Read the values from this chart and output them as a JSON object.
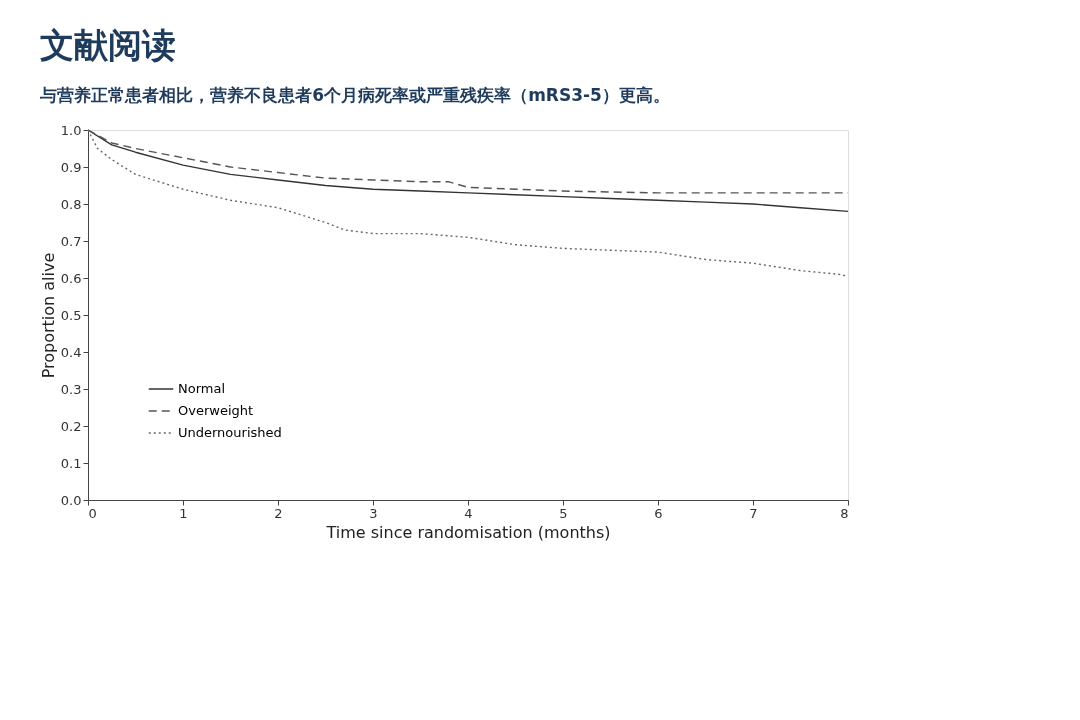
{
  "chart_data": {
    "type": "line",
    "title": "文献阅读",
    "subtitle": "与营养正常患者相比，营养不良患者6个月病死率或严重残疾率（mRS3-5）更高。",
    "xlabel": "Time since randomisation (months)",
    "ylabel": "Proportion alive",
    "xlim": [
      0,
      8
    ],
    "xticks": [
      0,
      1,
      2,
      3,
      4,
      5,
      6,
      7,
      8
    ],
    "ylim": [
      0,
      1
    ],
    "yticks": [
      {
        "value": 0,
        "label": "0.0"
      },
      0.1,
      0.2,
      0.3,
      0.4,
      0.5,
      0.6,
      0.7,
      0.8,
      0.9,
      {
        "value": 1,
        "label": "1.0"
      }
    ],
    "grid": false,
    "legend": "bottom left",
    "marker": "none",
    "series": [
      {
        "name": "Normal",
        "color": "#333333",
        "line_style": "solid",
        "x": [
          0,
          0.25,
          0.5,
          1,
          1.5,
          2,
          2.5,
          3,
          3.5,
          4,
          4.5,
          5,
          5.5,
          6,
          6.5,
          7,
          7.5,
          8
        ],
        "values": [
          1.0,
          0.96,
          0.94,
          0.905,
          0.88,
          0.865,
          0.85,
          0.84,
          0.835,
          0.83,
          0.825,
          0.82,
          0.815,
          0.81,
          0.805,
          0.8,
          0.79,
          0.78
        ]
      },
      {
        "name": "Overweight",
        "color": "#555555",
        "line_style": "dashed",
        "x": [
          0,
          0.25,
          0.5,
          1,
          1.5,
          2,
          2.5,
          3,
          3.5,
          3.8,
          4,
          5,
          6,
          7,
          8
        ],
        "values": [
          1.0,
          0.965,
          0.95,
          0.925,
          0.9,
          0.885,
          0.87,
          0.865,
          0.86,
          0.86,
          0.845,
          0.835,
          0.83,
          0.83,
          0.83
        ]
      },
      {
        "name": "Undernourished",
        "color": "#666666",
        "line_style": "dotted",
        "x": [
          0,
          0.1,
          0.25,
          0.5,
          1,
          1.5,
          2,
          2.5,
          2.7,
          3,
          3.5,
          4,
          4.5,
          5,
          5.5,
          6,
          6.5,
          7,
          7.5,
          7.9,
          8
        ],
        "values": [
          1.0,
          0.95,
          0.92,
          0.88,
          0.84,
          0.81,
          0.79,
          0.75,
          0.73,
          0.72,
          0.72,
          0.71,
          0.69,
          0.68,
          0.675,
          0.67,
          0.65,
          0.64,
          0.62,
          0.61,
          0.605
        ]
      }
    ]
  }
}
